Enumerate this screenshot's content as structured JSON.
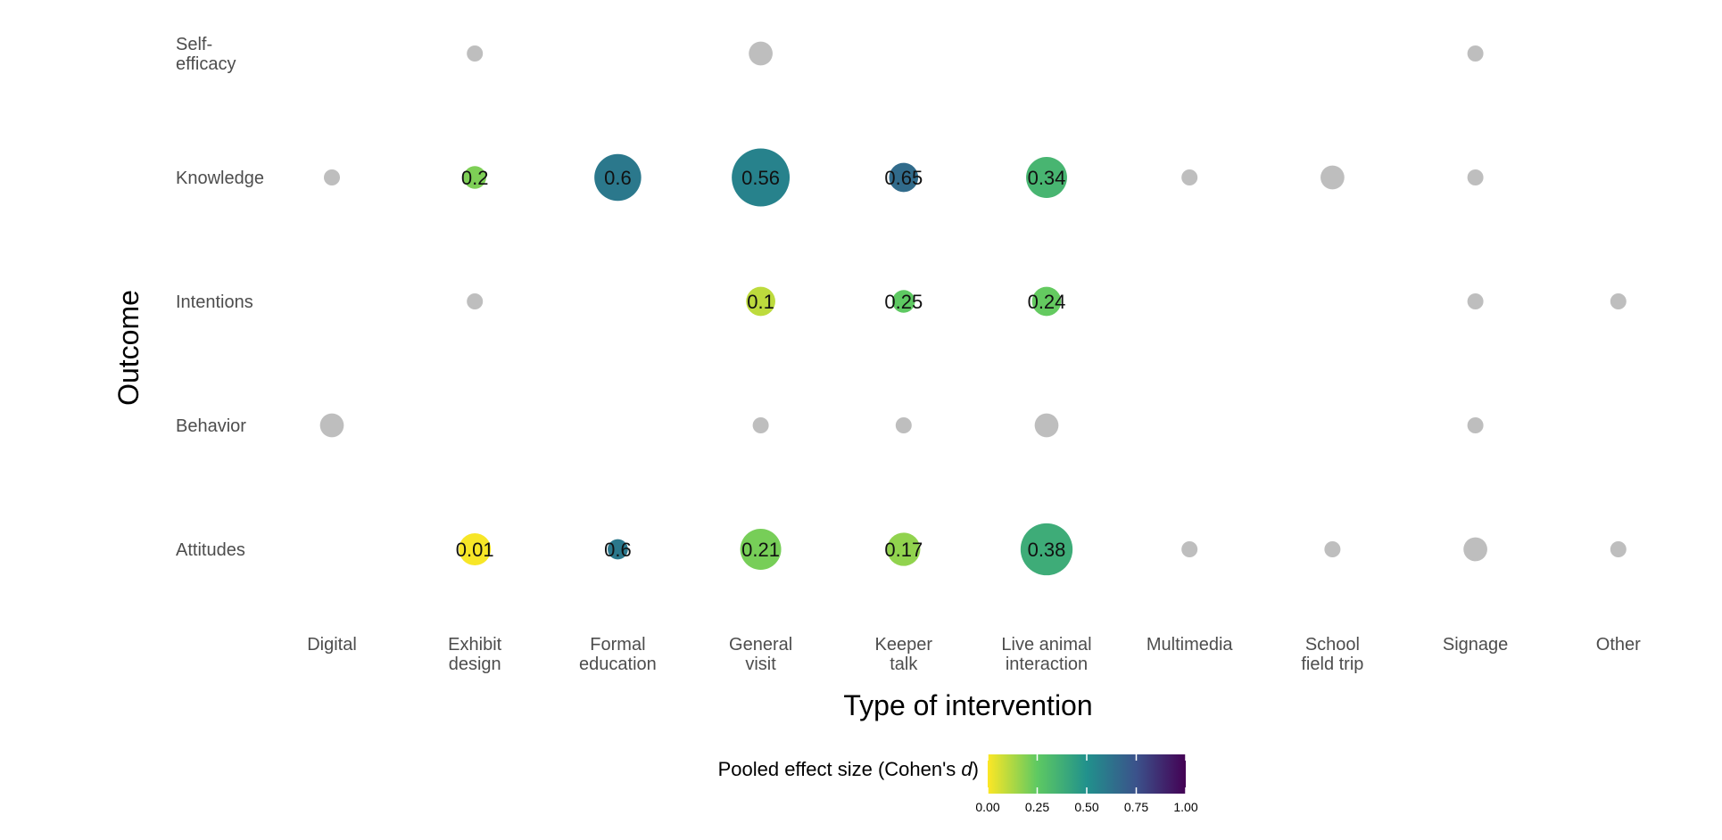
{
  "chart_data": {
    "type": "scatter",
    "xlabel": "Type of intervention",
    "ylabel": "Outcome",
    "x_categories": [
      [
        "Digital"
      ],
      [
        "Exhibit",
        "design"
      ],
      [
        "Formal",
        "education"
      ],
      [
        "General",
        "visit"
      ],
      [
        "Keeper",
        "talk"
      ],
      [
        "Live animal",
        "interaction"
      ],
      [
        "Multimedia"
      ],
      [
        "School",
        "field trip"
      ],
      [
        "Signage"
      ],
      [
        "Other"
      ]
    ],
    "y_categories": [
      [
        "Self-",
        "efficacy"
      ],
      [
        "Knowledge"
      ],
      [
        "Intentions"
      ],
      [
        "Behavior"
      ],
      [
        "Attitudes"
      ]
    ],
    "size_variable": "number of studies (unlabeled)",
    "points": [
      {
        "x": 1,
        "y": 0,
        "size": 1.0,
        "effect": null,
        "label": ""
      },
      {
        "x": 3,
        "y": 0,
        "size": 2.2,
        "effect": null,
        "label": ""
      },
      {
        "x": 8,
        "y": 0,
        "size": 1.0,
        "effect": null,
        "label": ""
      },
      {
        "x": 0,
        "y": 1,
        "size": 1.0,
        "effect": null,
        "label": ""
      },
      {
        "x": 1,
        "y": 1,
        "size": 2.0,
        "effect": 0.2,
        "label": "0.2"
      },
      {
        "x": 2,
        "y": 1,
        "size": 8.5,
        "effect": 0.6,
        "label": "0.6"
      },
      {
        "x": 3,
        "y": 1,
        "size": 13.0,
        "effect": 0.56,
        "label": "0.56"
      },
      {
        "x": 4,
        "y": 1,
        "size": 3.3,
        "effect": 0.65,
        "label": "0.65"
      },
      {
        "x": 5,
        "y": 1,
        "size": 6.5,
        "effect": 0.34,
        "label": "0.34"
      },
      {
        "x": 6,
        "y": 1,
        "size": 1.0,
        "effect": null,
        "label": ""
      },
      {
        "x": 7,
        "y": 1,
        "size": 2.2,
        "effect": null,
        "label": ""
      },
      {
        "x": 8,
        "y": 1,
        "size": 1.0,
        "effect": null,
        "label": ""
      },
      {
        "x": 1,
        "y": 2,
        "size": 1.0,
        "effect": null,
        "label": ""
      },
      {
        "x": 3,
        "y": 2,
        "size": 3.3,
        "effect": 0.1,
        "label": "0.1"
      },
      {
        "x": 4,
        "y": 2,
        "size": 2.0,
        "effect": 0.25,
        "label": "0.25"
      },
      {
        "x": 5,
        "y": 2,
        "size": 3.3,
        "effect": 0.24,
        "label": "0.24"
      },
      {
        "x": 8,
        "y": 2,
        "size": 1.0,
        "effect": null,
        "label": ""
      },
      {
        "x": 9,
        "y": 2,
        "size": 1.0,
        "effect": null,
        "label": ""
      },
      {
        "x": 0,
        "y": 3,
        "size": 2.2,
        "effect": null,
        "label": ""
      },
      {
        "x": 3,
        "y": 3,
        "size": 1.0,
        "effect": null,
        "label": ""
      },
      {
        "x": 4,
        "y": 3,
        "size": 1.0,
        "effect": null,
        "label": ""
      },
      {
        "x": 5,
        "y": 3,
        "size": 2.2,
        "effect": null,
        "label": ""
      },
      {
        "x": 8,
        "y": 3,
        "size": 1.0,
        "effect": null,
        "label": ""
      },
      {
        "x": 1,
        "y": 4,
        "size": 4.0,
        "effect": 0.01,
        "label": "0.01"
      },
      {
        "x": 2,
        "y": 4,
        "size": 1.6,
        "effect": 0.6,
        "label": "0.6"
      },
      {
        "x": 3,
        "y": 4,
        "size": 6.5,
        "effect": 0.21,
        "label": "0.21"
      },
      {
        "x": 4,
        "y": 4,
        "size": 4.3,
        "effect": 0.17,
        "label": "0.17"
      },
      {
        "x": 5,
        "y": 4,
        "size": 10.5,
        "effect": 0.38,
        "label": "0.38"
      },
      {
        "x": 6,
        "y": 4,
        "size": 1.0,
        "effect": null,
        "label": ""
      },
      {
        "x": 7,
        "y": 4,
        "size": 1.0,
        "effect": null,
        "label": ""
      },
      {
        "x": 8,
        "y": 4,
        "size": 2.2,
        "effect": null,
        "label": ""
      },
      {
        "x": 9,
        "y": 4,
        "size": 1.0,
        "effect": null,
        "label": ""
      }
    ],
    "no_effect_color": "#bebebe",
    "colorbar": {
      "title": "Pooled effect size (Cohen's ",
      "title_italic": "d",
      "title_end": ")",
      "range": [
        0,
        1
      ],
      "ticks": [
        "0.00",
        "0.25",
        "0.50",
        "0.75",
        "1.00"
      ],
      "colormap": "viridis (reversed)",
      "stops": [
        "#fde725",
        "#5ec962",
        "#21918c",
        "#3b528b",
        "#440154"
      ]
    },
    "grid": false
  }
}
